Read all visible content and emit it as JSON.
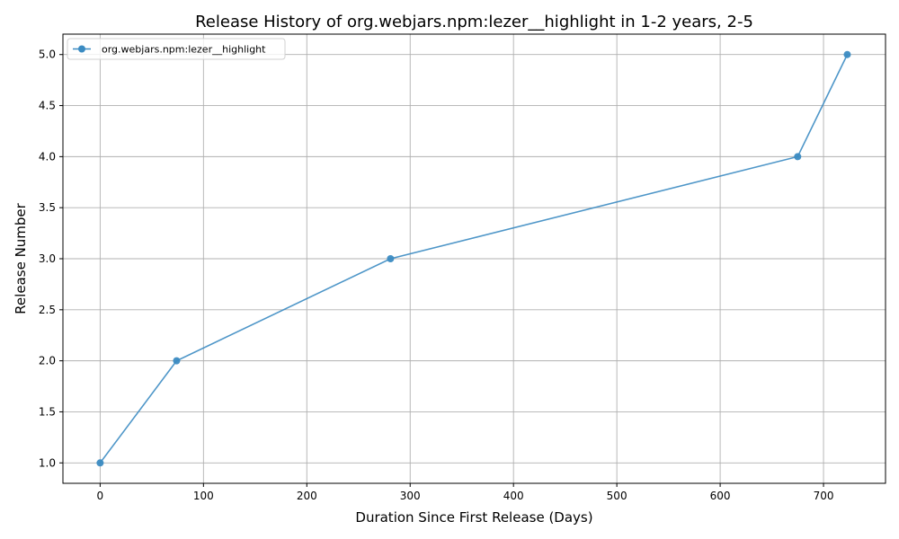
{
  "chart_data": {
    "type": "line",
    "title": "Release History of org.webjars.npm:lezer__highlight in 1-2 years, 2-5",
    "xlabel": "Duration Since First Release (Days)",
    "ylabel": "Release Number",
    "xlim": [
      -36,
      760
    ],
    "ylim": [
      0.8,
      5.2
    ],
    "xticks": [
      0,
      100,
      200,
      300,
      400,
      500,
      600,
      700
    ],
    "yticks": [
      1.0,
      1.5,
      2.0,
      2.5,
      3.0,
      3.5,
      4.0,
      4.5,
      5.0
    ],
    "grid": true,
    "legend_position": "top-left",
    "series": [
      {
        "name": "org.webjars.npm:lezer__highlight",
        "color": "#3b8bc2",
        "marker": "circle",
        "x": [
          0,
          74,
          281,
          675,
          723
        ],
        "y": [
          1,
          2,
          3,
          4,
          5
        ]
      }
    ]
  }
}
